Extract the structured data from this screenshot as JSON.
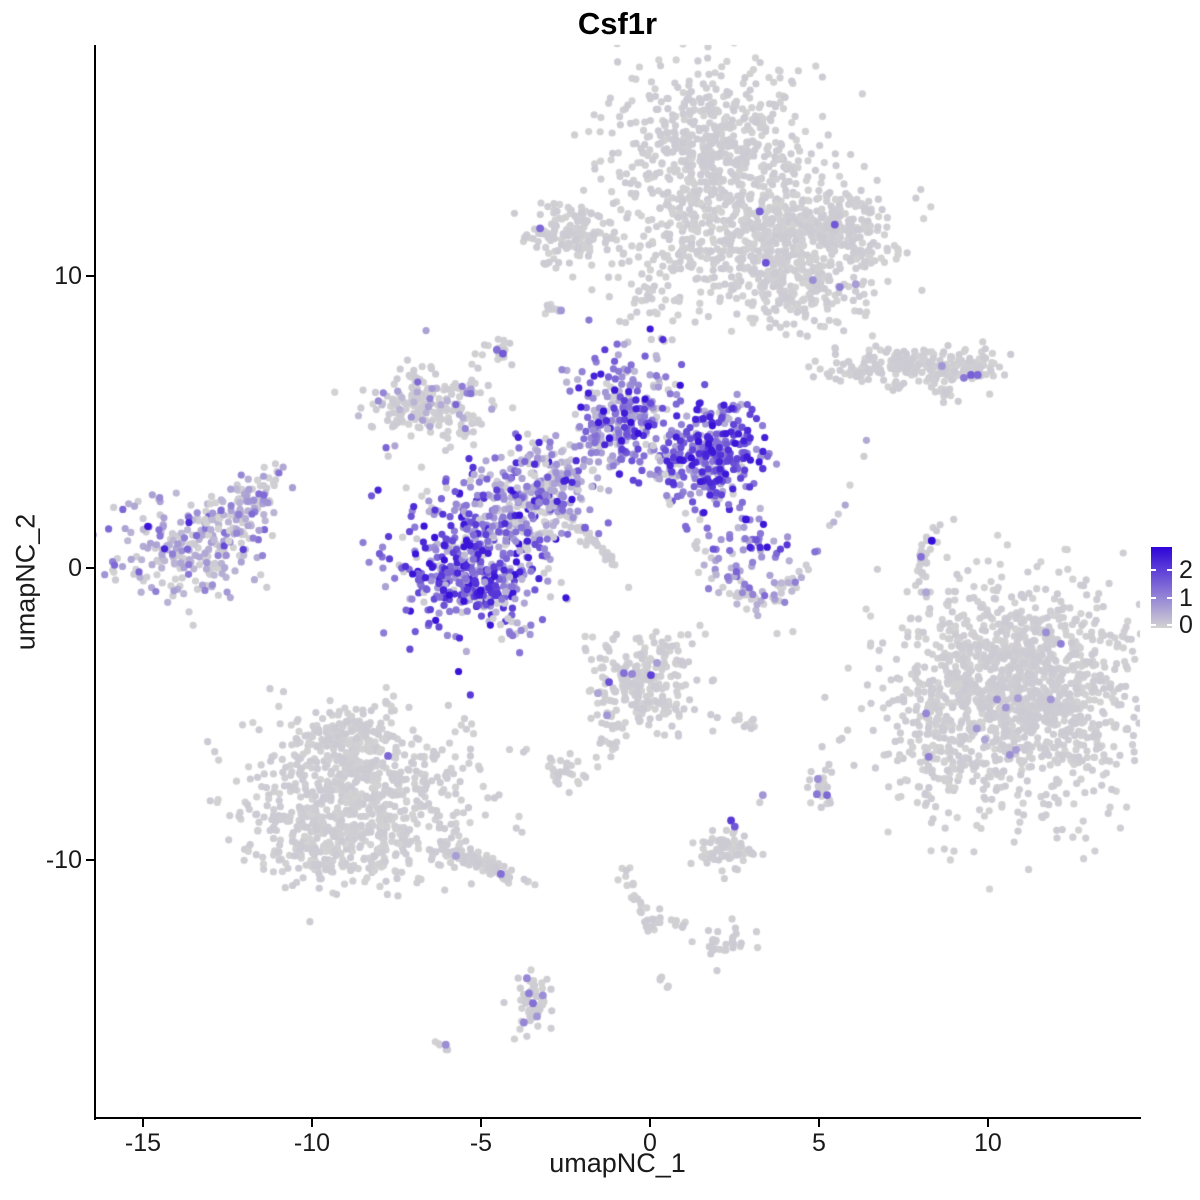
{
  "chart_data": {
    "type": "scatter",
    "title": "Csf1r",
    "xlabel": "umapNC_1",
    "ylabel": "umapNC_2",
    "x_ticks": [
      -15,
      -10,
      -5,
      0,
      5,
      10
    ],
    "y_ticks": [
      -10,
      0,
      10
    ],
    "xlim": [
      -16.42,
      14.5
    ],
    "ylim": [
      -18.84,
      17.91
    ],
    "grid": false,
    "point_radius_px": 3.6,
    "color_low": "#d3d3d3",
    "color_high": "#2e04d9",
    "value_max": 2.7,
    "legend": {
      "ticks": [
        2,
        1,
        0
      ],
      "value_top": 2.84,
      "value_bottom": -0.11,
      "gradient_top": "#2e04d9",
      "gradient_bottom": "#d3d3d3",
      "position": "right"
    },
    "value_bands": {
      "gray": [
        0,
        0.12
      ],
      "light": [
        0.3,
        0.7
      ],
      "medium": [
        0.75,
        1.45
      ],
      "high": [
        1.45,
        2.55
      ]
    },
    "clusters": [
      {
        "name": "top-main-core",
        "cx": 1.78,
        "cy": 14.12,
        "sdx": 1.48,
        "sdy": 1.56,
        "n": 650,
        "vdist": [
          1,
          0,
          0,
          0
        ]
      },
      {
        "name": "top-main-lower",
        "cx": 3.49,
        "cy": 11.07,
        "sdx": 1.63,
        "sdy": 1.14,
        "n": 450,
        "vdist": [
          1,
          0,
          0,
          0
        ]
      },
      {
        "name": "top-main-wing",
        "cx": 5.33,
        "cy": 11.63,
        "sdx": 0.89,
        "sdy": 0.76,
        "n": 200,
        "vdist": [
          1,
          0,
          0,
          0
        ]
      },
      {
        "name": "top-main-south",
        "cx": 4.44,
        "cy": 9.34,
        "sdx": 1.12,
        "sdy": 0.76,
        "n": 130,
        "vdist": [
          1,
          0,
          0,
          0
        ]
      },
      {
        "name": "top-main-below",
        "cx": 0.3,
        "cy": 9.6,
        "sdx": 0.95,
        "sdy": 1.0,
        "n": 70,
        "vdist": [
          1,
          0,
          0,
          0
        ]
      },
      {
        "name": "top-left-small",
        "cx": -2.22,
        "cy": 11.52,
        "sdx": 0.77,
        "sdy": 0.55,
        "n": 150,
        "vdist": [
          1,
          0,
          0,
          0
        ]
      },
      {
        "name": "tiny-streak-left",
        "cx": -2.81,
        "cy": 8.86,
        "sdx": 0.15,
        "sdy": 0.14,
        "n": 10,
        "vdist": [
          1,
          0,
          0,
          0
        ]
      },
      {
        "name": "small-blob",
        "cx": -4.59,
        "cy": 7.37,
        "sdx": 0.24,
        "sdy": 0.21,
        "n": 16,
        "vdist": [
          1,
          0,
          0,
          0
        ]
      },
      {
        "name": "right-elongated",
        "cx": 7.84,
        "cy": 6.92,
        "sdx": 1.24,
        "sdy": 0.31,
        "n": 200,
        "vdist": [
          1,
          0,
          0,
          0
        ]
      },
      {
        "name": "right-elongated-end",
        "cx": 9.62,
        "cy": 6.78,
        "sdx": 0.41,
        "sdy": 0.24,
        "n": 40,
        "vdist": [
          1,
          0,
          0,
          0
        ]
      },
      {
        "name": "right-elongated-streak",
        "cx": 8.79,
        "cy": 5.95,
        "sdx": 0.24,
        "sdy": 0.17,
        "n": 14,
        "vdist": [
          1,
          0,
          0,
          0
        ],
        "slope": -0.6
      },
      {
        "name": "gray-streak-diag",
        "cx": -1.86,
        "cy": 1.07,
        "sdx": 0.5,
        "sdy": 0.14,
        "n": 55,
        "vdist": [
          1,
          0,
          0,
          0
        ],
        "slope": -1.17
      },
      {
        "name": "central-gray-wing",
        "cx": -6.57,
        "cy": 5.61,
        "sdx": 1.04,
        "sdy": 0.62,
        "n": 200,
        "vdist": [
          0.8,
          0.13,
          0.07,
          0
        ]
      },
      {
        "name": "central-left-blob",
        "cx": -5.33,
        "cy": 0.28,
        "sdx": 1.07,
        "sdy": 1.18,
        "n": 360,
        "vdist": [
          0.12,
          0.18,
          0.32,
          0.38
        ]
      },
      {
        "name": "central-left-rim",
        "cx": -5.33,
        "cy": -0.6,
        "sdx": 0.9,
        "sdy": 0.42,
        "n": 90,
        "vdist": [
          0.05,
          0.1,
          0.25,
          0.6
        ]
      },
      {
        "name": "central-bridge",
        "cx": -3.85,
        "cy": 2.11,
        "sdx": 0.83,
        "sdy": 0.9,
        "n": 240,
        "vdist": [
          0.3,
          0.3,
          0.25,
          0.15
        ]
      },
      {
        "name": "central-fan",
        "cx": -0.83,
        "cy": 5.12,
        "sdx": 0.8,
        "sdy": 1.04,
        "n": 280,
        "vdist": [
          0.15,
          0.3,
          0.35,
          0.2
        ]
      },
      {
        "name": "central-right-lobe",
        "cx": 1.83,
        "cy": 4.01,
        "sdx": 0.77,
        "sdy": 0.83,
        "n": 340,
        "vdist": [
          0.08,
          0.15,
          0.32,
          0.45
        ]
      },
      {
        "name": "central-connector",
        "cx": -2.66,
        "cy": 3.04,
        "sdx": 0.65,
        "sdy": 0.69,
        "n": 100,
        "vdist": [
          0.3,
          0.3,
          0.3,
          0.1
        ]
      },
      {
        "name": "central-tail-down",
        "cx": -4.08,
        "cy": -1.7,
        "sdx": 0.3,
        "sdy": 0.42,
        "n": 18,
        "vdist": [
          0.4,
          0.3,
          0.3,
          0
        ]
      },
      {
        "name": "left-cluster",
        "cx": -13.61,
        "cy": 0.69,
        "sdx": 1.12,
        "sdy": 0.93,
        "n": 230,
        "vdist": [
          0.42,
          0.38,
          0.18,
          0.02
        ]
      },
      {
        "name": "left-cluster-tail",
        "cx": -11.89,
        "cy": 2.15,
        "sdx": 0.65,
        "sdy": 0.48,
        "n": 100,
        "vdist": [
          0.45,
          0.35,
          0.2,
          0
        ],
        "slope": 0.65
      },
      {
        "name": "crescent-arc",
        "cx": 3.17,
        "cy": -1.04,
        "sdx": 1.33,
        "sdy": 0.33,
        "n": 85,
        "vdist": [
          0.5,
          0.28,
          0.22,
          0
        ],
        "curve_y": 0.5
      },
      {
        "name": "crescent-upper",
        "cx": 2.96,
        "cy": 0.69,
        "sdx": 0.74,
        "sdy": 0.69,
        "n": 40,
        "vdist": [
          0.05,
          0.25,
          0.45,
          0.25
        ]
      },
      {
        "name": "crescent-spot",
        "cx": 3.17,
        "cy": 0.76,
        "sdx": 0.18,
        "sdy": 0.18,
        "n": 10,
        "vdist": [
          0,
          0.1,
          0.4,
          0.5
        ]
      },
      {
        "name": "sliver",
        "cx": 8.05,
        "cy": 0.0,
        "sdx": 0.14,
        "sdy": 0.85,
        "n": 30,
        "vdist": [
          1,
          0,
          0,
          0
        ],
        "curve_x": 0.22
      },
      {
        "name": "right-big",
        "cx": 10.95,
        "cy": -4.36,
        "sdx": 1.78,
        "sdy": 1.9,
        "n": 1350,
        "vdist": [
          1,
          0,
          0,
          0
        ]
      },
      {
        "name": "right-big-trail",
        "cx": 8.34,
        "cy": -5.74,
        "sdx": 0.59,
        "sdy": 1.66,
        "n": 110,
        "vdist": [
          1,
          0,
          0,
          0
        ]
      },
      {
        "name": "center-low",
        "cx": -0.21,
        "cy": -4.08,
        "sdx": 0.8,
        "sdy": 0.87,
        "n": 240,
        "vdist": [
          1,
          0,
          0,
          0
        ]
      },
      {
        "name": "center-low-tail",
        "cx": -1.12,
        "cy": -6.02,
        "sdx": 0.18,
        "sdy": 0.42,
        "n": 12,
        "vdist": [
          1,
          0,
          0,
          0
        ]
      },
      {
        "name": "center-low-blob",
        "cx": -2.37,
        "cy": -7.09,
        "sdx": 0.38,
        "sdy": 0.35,
        "n": 30,
        "vdist": [
          1,
          0,
          0,
          0
        ]
      },
      {
        "name": "center-low-streak",
        "cx": 2.81,
        "cy": -5.26,
        "sdx": 0.35,
        "sdy": 0.14,
        "n": 10,
        "vdist": [
          1,
          0,
          0,
          0
        ]
      },
      {
        "name": "bottomleft-core",
        "cx": -8.52,
        "cy": -7.75,
        "sdx": 1.63,
        "sdy": 1.45,
        "n": 620,
        "vdist": [
          1,
          0,
          0,
          0
        ]
      },
      {
        "name": "bottomleft-left",
        "cx": -9.47,
        "cy": -9.17,
        "sdx": 1.18,
        "sdy": 0.76,
        "n": 230,
        "vdist": [
          1,
          0,
          0,
          0
        ]
      },
      {
        "name": "bottomleft-apex",
        "cx": -8.88,
        "cy": -5.71,
        "sdx": 0.65,
        "sdy": 0.55,
        "n": 120,
        "vdist": [
          1,
          0,
          0,
          0
        ]
      },
      {
        "name": "bottomleft-tail",
        "cx": -5.15,
        "cy": -10.03,
        "sdx": 0.62,
        "sdy": 0.14,
        "n": 100,
        "vdist": [
          1,
          0,
          0,
          0
        ],
        "slope": -0.46
      },
      {
        "name": "bottom-small-right",
        "cx": 5.03,
        "cy": -7.54,
        "sdx": 0.24,
        "sdy": 0.31,
        "n": 22,
        "vdist": [
          1,
          0,
          0,
          0
        ]
      },
      {
        "name": "bottom-gray2",
        "cx": 2.31,
        "cy": -9.72,
        "sdx": 0.5,
        "sdy": 0.31,
        "n": 65,
        "vdist": [
          1,
          0,
          0,
          0
        ]
      },
      {
        "name": "chain",
        "cx": -0.68,
        "cy": -10.69,
        "sdx": 0.22,
        "sdy": 0.2,
        "n": 14,
        "vdist": [
          1,
          0,
          0,
          0
        ],
        "slope": -2.0
      },
      {
        "name": "chain-blob1",
        "cx": -0.06,
        "cy": -12.04,
        "sdx": 0.2,
        "sdy": 0.27,
        "n": 18,
        "vdist": [
          1,
          0,
          0,
          0
        ]
      },
      {
        "name": "chain-streak",
        "cx": 0.71,
        "cy": -12.15,
        "sdx": 0.24,
        "sdy": 0.1,
        "n": 7,
        "vdist": [
          1,
          0,
          0,
          0
        ]
      },
      {
        "name": "chain-blob2",
        "cx": 2.04,
        "cy": -12.87,
        "sdx": 0.38,
        "sdy": 0.31,
        "n": 30,
        "vdist": [
          1,
          0,
          0,
          0
        ]
      },
      {
        "name": "chain-streak2",
        "cx": 0.56,
        "cy": -14.26,
        "sdx": 0.18,
        "sdy": 0.12,
        "n": 5,
        "vdist": [
          1,
          0,
          0,
          0
        ],
        "slope": -0.8
      },
      {
        "name": "bottom-cluster",
        "cx": -3.49,
        "cy": -14.81,
        "sdx": 0.27,
        "sdy": 0.59,
        "n": 55,
        "vdist": [
          1,
          0,
          0,
          0
        ]
      },
      {
        "name": "bottom-tiny-streak",
        "cx": -6.07,
        "cy": -16.4,
        "sdx": 0.15,
        "sdy": 0.08,
        "n": 5,
        "vdist": [
          1,
          0,
          0,
          0
        ],
        "slope": -0.5
      }
    ],
    "marked_points": [
      {
        "x": 3.25,
        "y": 12.21,
        "v": 1.5
      },
      {
        "x": 5.47,
        "y": 11.76,
        "v": 1.6
      },
      {
        "x": 3.43,
        "y": 10.45,
        "v": 1.7
      },
      {
        "x": 4.82,
        "y": 9.86,
        "v": 0.9
      },
      {
        "x": 5.62,
        "y": 9.62,
        "v": 1.1
      },
      {
        "x": 6.09,
        "y": 9.72,
        "v": 0.7
      },
      {
        "x": -3.25,
        "y": 11.63,
        "v": 1.4
      },
      {
        "x": -2.63,
        "y": 8.82,
        "v": 0.8
      },
      {
        "x": -4.53,
        "y": 7.47,
        "v": 1.3
      },
      {
        "x": -4.35,
        "y": 7.34,
        "v": 1.6
      },
      {
        "x": 8.64,
        "y": 6.92,
        "v": 0.8
      },
      {
        "x": 9.29,
        "y": 6.51,
        "v": 1.2
      },
      {
        "x": 9.5,
        "y": 6.61,
        "v": 1.5
      },
      {
        "x": 9.7,
        "y": 6.61,
        "v": 1.4
      },
      {
        "x": -1.92,
        "y": 1.38,
        "v": 1.5
      },
      {
        "x": 2.84,
        "y": 1.66,
        "v": 2.5
      },
      {
        "x": 8.34,
        "y": 0.93,
        "v": 2.6
      },
      {
        "x": 8.02,
        "y": 0.38,
        "v": 1.3
      },
      {
        "x": 8.17,
        "y": -0.83,
        "v": 0.6
      },
      {
        "x": 11.72,
        "y": -2.21,
        "v": 0.9
      },
      {
        "x": 12.16,
        "y": -2.6,
        "v": 1.1
      },
      {
        "x": 10.27,
        "y": -4.5,
        "v": 0.9
      },
      {
        "x": 10.53,
        "y": -4.78,
        "v": 0.8
      },
      {
        "x": 10.89,
        "y": -4.46,
        "v": 0.7
      },
      {
        "x": 11.86,
        "y": -4.5,
        "v": 0.8
      },
      {
        "x": 9.67,
        "y": -5.5,
        "v": 0.8
      },
      {
        "x": 9.91,
        "y": -5.88,
        "v": 0.6
      },
      {
        "x": 10.65,
        "y": -6.4,
        "v": 0.9
      },
      {
        "x": 8.17,
        "y": -4.98,
        "v": 1.0
      },
      {
        "x": 8.25,
        "y": -6.47,
        "v": 1.1
      },
      {
        "x": 10.83,
        "y": -6.23,
        "v": 0.7
      },
      {
        "x": -1.21,
        "y": -3.91,
        "v": 1.7
      },
      {
        "x": -0.77,
        "y": -3.6,
        "v": 1.3
      },
      {
        "x": -0.53,
        "y": -3.63,
        "v": 1.0
      },
      {
        "x": 0.03,
        "y": -3.67,
        "v": 1.9
      },
      {
        "x": 0.21,
        "y": -3.25,
        "v": 0.7
      },
      {
        "x": -1.27,
        "y": -5.05,
        "v": 0.8
      },
      {
        "x": -1.54,
        "y": -4.29,
        "v": 0.6
      },
      {
        "x": -7.75,
        "y": -6.44,
        "v": 1.4
      },
      {
        "x": -5.74,
        "y": -9.86,
        "v": 0.7
      },
      {
        "x": -4.41,
        "y": -10.48,
        "v": 1.3
      },
      {
        "x": 4.97,
        "y": -7.23,
        "v": 0.9
      },
      {
        "x": 4.94,
        "y": -7.75,
        "v": 1.2
      },
      {
        "x": 5.24,
        "y": -7.78,
        "v": 1.4
      },
      {
        "x": 3.34,
        "y": -7.78,
        "v": 0.8
      },
      {
        "x": 2.4,
        "y": -8.65,
        "v": 2.0
      },
      {
        "x": 2.51,
        "y": -8.86,
        "v": 1.6
      },
      {
        "x": -3.64,
        "y": -14.05,
        "v": 1.0
      },
      {
        "x": -3.58,
        "y": -14.57,
        "v": 1.1
      },
      {
        "x": -3.17,
        "y": -14.64,
        "v": 0.9
      },
      {
        "x": -3.46,
        "y": -14.91,
        "v": 1.3
      },
      {
        "x": -3.34,
        "y": -15.36,
        "v": 0.8
      },
      {
        "x": -3.73,
        "y": -15.57,
        "v": 1.0
      },
      {
        "x": -6.04,
        "y": -16.33,
        "v": 0.9
      }
    ],
    "stray_points": [
      {
        "x": 3.76,
        "y": -2.25
      },
      {
        "x": 4.23,
        "y": -2.18
      },
      {
        "x": 9.17,
        "y": -2.39
      },
      {
        "x": -2.84,
        "y": 3.25
      },
      {
        "x": 1.48,
        "y": -1.97
      },
      {
        "x": 3.25,
        "y": -8.03
      },
      {
        "x": 2.46,
        "y": -9.1
      }
    ]
  }
}
